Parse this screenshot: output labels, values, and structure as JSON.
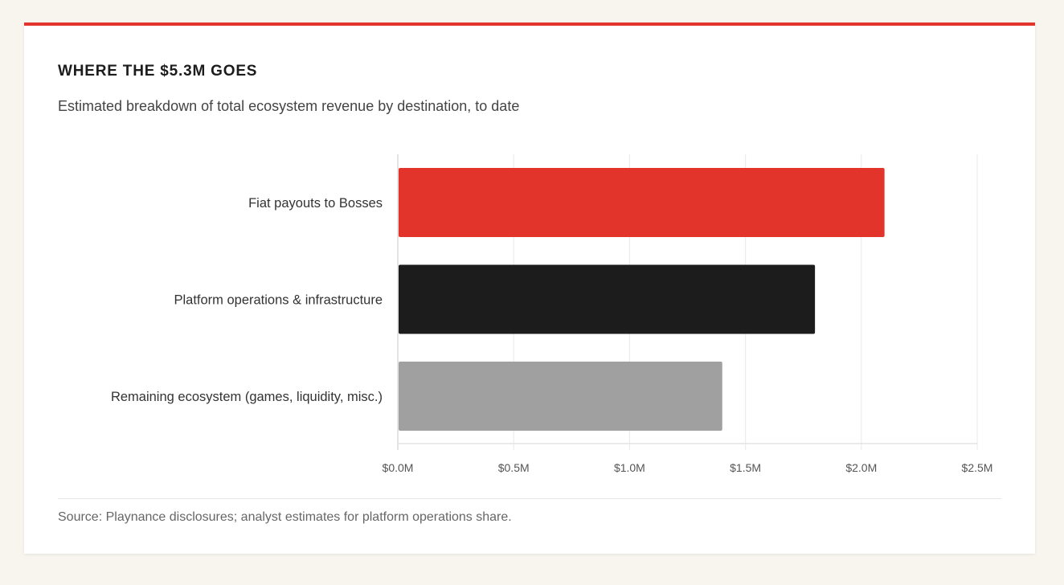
{
  "header": {
    "title": "WHERE THE $5.3M GOES",
    "subtitle": "Estimated breakdown of total ecosystem revenue by destination, to date"
  },
  "footer": {
    "source": "Source: Playnance disclosures; analyst estimates for platform operations share."
  },
  "colors": {
    "accent": "#e3342b",
    "background": "#f8f5ef",
    "card": "#ffffff"
  },
  "chart_data": {
    "type": "bar",
    "orientation": "horizontal",
    "title": "WHERE THE $5.3M GOES",
    "subtitle": "Estimated breakdown of total ecosystem revenue by destination, to date",
    "xlabel": "",
    "ylabel": "",
    "unit": "$M",
    "categories": [
      "Fiat payouts to Bosses",
      "Platform operations & infrastructure",
      "Remaining ecosystem (games, liquidity, misc.)"
    ],
    "values": [
      2.1,
      1.8,
      1.4
    ],
    "bar_colors": [
      "#e3342b",
      "#1c1c1c",
      "#a0a0a0"
    ],
    "xlim": [
      0,
      2.5
    ],
    "x_ticks": [
      0,
      0.5,
      1.0,
      1.5,
      2.0,
      2.5
    ],
    "x_tick_labels": [
      "$0.0M",
      "$0.5M",
      "$1.0M",
      "$1.5M",
      "$2.0M",
      "$2.5M"
    ],
    "grid": true,
    "legend": "none"
  }
}
